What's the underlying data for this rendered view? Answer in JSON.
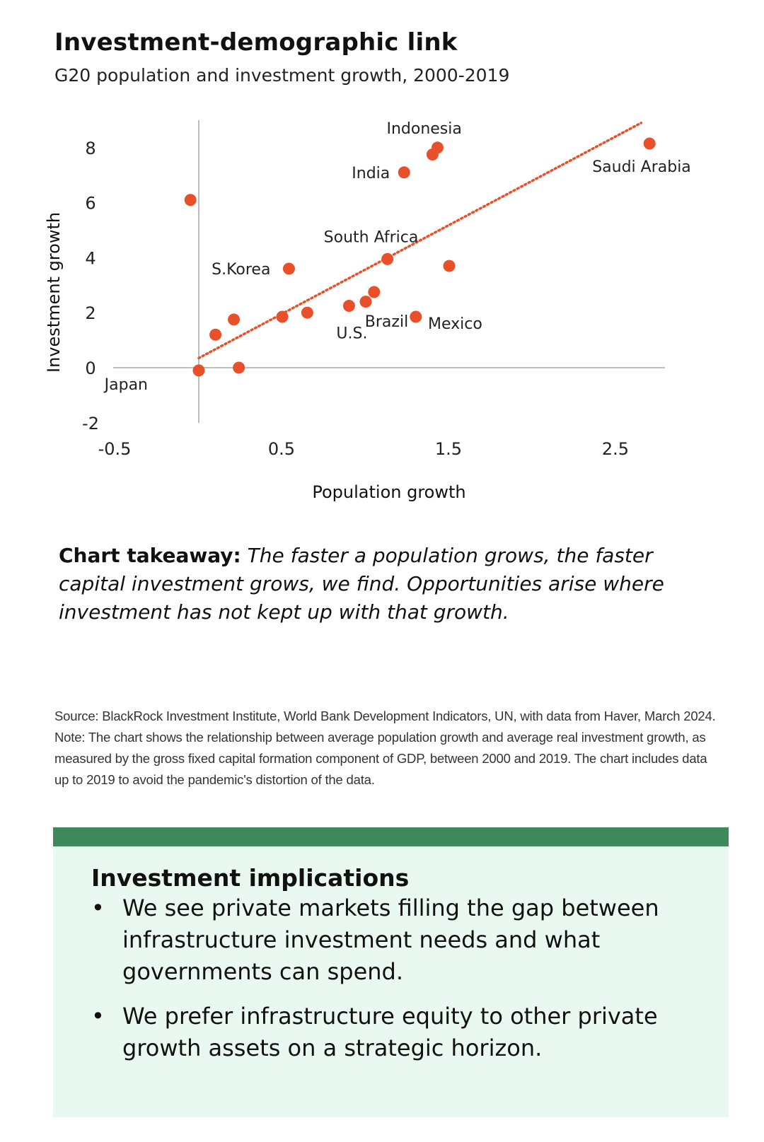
{
  "header": {
    "title": "Investment-demographic link",
    "subtitle": "G20 population and investment growth, 2000-2019"
  },
  "chart_data": {
    "type": "scatter",
    "xlabel": "Population growth",
    "ylabel": "Investment growth",
    "xlim": [
      -0.5,
      2.9
    ],
    "ylim": [
      -2,
      9
    ],
    "x_ticks": [
      "-0.5",
      "0.5",
      "1.5",
      "2.5"
    ],
    "x_tick_values": [
      -0.5,
      0.5,
      1.5,
      2.5
    ],
    "y_ticks": [
      "-2",
      "0",
      "2",
      "4",
      "6",
      "8"
    ],
    "y_tick_values": [
      -2,
      0,
      2,
      4,
      6,
      8
    ],
    "points": [
      {
        "x": -0.05,
        "y": 6.1,
        "label": ""
      },
      {
        "x": 0.0,
        "y": -0.1,
        "label": "Japan"
      },
      {
        "x": 0.1,
        "y": 1.2,
        "label": ""
      },
      {
        "x": 0.21,
        "y": 1.75,
        "label": ""
      },
      {
        "x": 0.24,
        "y": 0.0,
        "label": ""
      },
      {
        "x": 0.5,
        "y": 1.85,
        "label": ""
      },
      {
        "x": 0.54,
        "y": 3.6,
        "label": "S.Korea"
      },
      {
        "x": 0.65,
        "y": 2.0,
        "label": ""
      },
      {
        "x": 0.9,
        "y": 2.25,
        "label": "U.S."
      },
      {
        "x": 1.0,
        "y": 2.4,
        "label": ""
      },
      {
        "x": 1.05,
        "y": 2.75,
        "label": ""
      },
      {
        "x": 1.13,
        "y": 3.95,
        "label": "South Africa"
      },
      {
        "x": 1.23,
        "y": 7.1,
        "label": "India"
      },
      {
        "x": 1.3,
        "y": 1.85,
        "label": "Brazil"
      },
      {
        "x": 1.4,
        "y": 7.75,
        "label": ""
      },
      {
        "x": 1.43,
        "y": 8.0,
        "label": "Indonesia"
      },
      {
        "x": 1.5,
        "y": 3.7,
        "label": "Mexico"
      },
      {
        "x": 2.7,
        "y": 8.15,
        "label": "Saudi Arabia"
      }
    ],
    "trendline": {
      "x": [
        0.0,
        2.65
      ],
      "y": [
        0.35,
        8.9
      ]
    },
    "colors": {
      "point": "#e8502a",
      "trend": "#e8502a",
      "axis": "#bdbdbd"
    }
  },
  "takeaway": {
    "label": "Chart takeaway:",
    "text": "The faster a population grows, the faster capital investment grows, we find. Opportunities arise where investment has not kept up with that growth."
  },
  "source": "Source: BlackRock Investment Institute, World Bank Development Indicators, UN, with data from Haver, March 2024. Note: The chart shows the relationship between average population growth and average real investment growth, as measured by the gross fixed capital formation component of GDP, between 2000 and 2019. The chart includes data up to 2019 to avoid the pandemic's distortion of the data.",
  "implications": {
    "title": "Investment implications",
    "bullets": [
      "We see private markets filling the gap between infrastructure investment needs and what governments can spend.",
      "We prefer infrastructure equity to other private growth assets on a strategic horizon."
    ],
    "colors": {
      "bar": "#3f8a5b",
      "box": "#e9f9f1"
    }
  }
}
